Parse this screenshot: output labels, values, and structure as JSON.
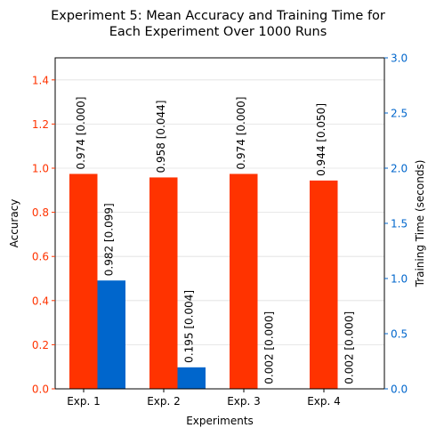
{
  "chart_data": {
    "type": "bar",
    "title_line1": "Experiment 5: Mean Accuracy and Training Time for",
    "title_line2": "Each Experiment Over 1000 Runs",
    "xlabel": "Experiments",
    "ylabel_left": "Accuracy",
    "ylabel_right": "Training Time (seconds)",
    "categories": [
      "Exp. 1",
      "Exp. 2",
      "Exp. 3",
      "Exp. 4"
    ],
    "ylim_left": [
      0,
      1.5
    ],
    "ylim_right": [
      0,
      3.0
    ],
    "yticks_left": [
      "0.0",
      "0.2",
      "0.4",
      "0.6",
      "0.8",
      "1.0",
      "1.2",
      "1.4"
    ],
    "yticks_right": [
      "0.0",
      "0.5",
      "1.0",
      "1.5",
      "2.0",
      "2.5",
      "3.0"
    ],
    "grid": "horizontal",
    "series": [
      {
        "axis": "left",
        "color": "#ff3300",
        "values": [
          0.974,
          0.958,
          0.974,
          0.944
        ],
        "labels": [
          "0.974 [0.000]",
          "0.958 [0.044]",
          "0.974 [0.000]",
          "0.944 [0.050]"
        ]
      },
      {
        "axis": "right",
        "color": "#0066cc",
        "values": [
          0.982,
          0.195,
          0.002,
          0.002
        ],
        "labels": [
          "0.982 [0.099]",
          "0.195 [0.004]",
          "0.002 [0.000]",
          "0.002 [0.000]"
        ]
      }
    ],
    "colors": {
      "left_axis": "#ff3300",
      "right_axis": "#0066cc",
      "grid": "#e0e0e0",
      "frame": "#000000"
    }
  }
}
